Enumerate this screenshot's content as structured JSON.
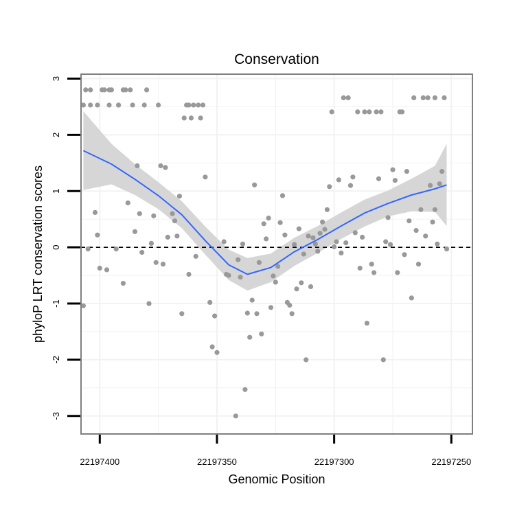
{
  "chart_data": {
    "type": "scatter",
    "title": "Conservation",
    "xlabel": "Genomic Position",
    "ylabel": "phyloP LRT conservation scores",
    "x_reversed": true,
    "xlim": [
      22197408,
      22197241
    ],
    "ylim": [
      -3.32,
      3.08
    ],
    "x_ticks": [
      22197400,
      22197350,
      22197300,
      22197250
    ],
    "x_tick_labels": [
      "22197400",
      "22197350",
      "22197300",
      "22197250"
    ],
    "y_ticks": [
      -3,
      -2,
      -1,
      0,
      1,
      2,
      3
    ],
    "y_tick_labels": [
      "-3",
      "-2",
      "-1",
      "0",
      "1",
      "2",
      "3"
    ],
    "reference_line": {
      "y": 0,
      "style": "dashed"
    },
    "grid": true,
    "colors": {
      "points": "#999999",
      "smooth": "#3366ff",
      "ribbon": "#d6d6d6",
      "panel_border": "#7f7f7f",
      "grid": "#f2f2f2"
    },
    "points": [
      [
        22197407,
        -1.04
      ],
      [
        22197407,
        2.53
      ],
      [
        22197406,
        2.8
      ],
      [
        22197405,
        -0.03
      ],
      [
        22197404,
        2.53
      ],
      [
        22197404,
        2.8
      ],
      [
        22197402,
        0.62
      ],
      [
        22197401,
        0.22
      ],
      [
        22197401,
        2.53
      ],
      [
        22197400,
        -0.37
      ],
      [
        22197399,
        2.8
      ],
      [
        22197398,
        2.8
      ],
      [
        22197397,
        -0.4
      ],
      [
        22197396,
        2.53
      ],
      [
        22197396,
        2.8
      ],
      [
        22197395,
        2.8
      ],
      [
        22197393,
        -0.03
      ],
      [
        22197392,
        2.53
      ],
      [
        22197392,
        2.53
      ],
      [
        22197390,
        -0.64
      ],
      [
        22197390,
        2.8
      ],
      [
        22197389,
        2.8
      ],
      [
        22197388,
        0.79
      ],
      [
        22197387,
        2.8
      ],
      [
        22197386,
        2.53
      ],
      [
        22197385,
        0.28
      ],
      [
        22197384,
        1.45
      ],
      [
        22197383,
        0.6
      ],
      [
        22197382,
        -0.09
      ],
      [
        22197381,
        2.53
      ],
      [
        22197380,
        2.8
      ],
      [
        22197379,
        -1.0
      ],
      [
        22197378,
        0.07
      ],
      [
        22197377,
        0.56
      ],
      [
        22197376,
        -0.27
      ],
      [
        22197375,
        2.53
      ],
      [
        22197374,
        1.45
      ],
      [
        22197373,
        -0.3
      ],
      [
        22197372,
        1.42
      ],
      [
        22197371,
        0.18
      ],
      [
        22197369,
        0.6
      ],
      [
        22197368,
        0.47
      ],
      [
        22197367,
        0.2
      ],
      [
        22197366,
        0.91
      ],
      [
        22197365,
        -1.18
      ],
      [
        22197364,
        2.3
      ],
      [
        22197363,
        2.53
      ],
      [
        22197362,
        -0.48
      ],
      [
        22197362,
        2.53
      ],
      [
        22197361,
        2.3
      ],
      [
        22197360,
        2.53
      ],
      [
        22197359,
        -0.16
      ],
      [
        22197358,
        2.53
      ],
      [
        22197357,
        2.3
      ],
      [
        22197356,
        2.53
      ],
      [
        22197355,
        1.25
      ],
      [
        22197353,
        -0.98
      ],
      [
        22197352,
        -1.77
      ],
      [
        22197351,
        -1.22
      ],
      [
        22197350,
        -1.87
      ],
      [
        22197347,
        0.1
      ],
      [
        22197346,
        -0.48
      ],
      [
        22197345,
        -0.5
      ],
      [
        22197342,
        -3.0
      ],
      [
        22197341,
        -0.22
      ],
      [
        22197340,
        -0.53
      ],
      [
        22197339,
        0.06
      ],
      [
        22197338,
        -2.53
      ],
      [
        22197337,
        -1.17
      ],
      [
        22197336,
        -1.6
      ],
      [
        22197335,
        -0.94
      ],
      [
        22197334,
        1.11
      ],
      [
        22197333,
        -1.18
      ],
      [
        22197332,
        -0.27
      ],
      [
        22197331,
        -1.54
      ],
      [
        22197330,
        0.42
      ],
      [
        22197329,
        0.15
      ],
      [
        22197328,
        0.52
      ],
      [
        22197327,
        -1.07
      ],
      [
        22197326,
        -0.51
      ],
      [
        22197325,
        -0.62
      ],
      [
        22197324,
        -0.34
      ],
      [
        22197323,
        0.44
      ],
      [
        22197322,
        0.92
      ],
      [
        22197321,
        0.22
      ],
      [
        22197320,
        -0.98
      ],
      [
        22197319,
        -1.03
      ],
      [
        22197318,
        -1.18
      ],
      [
        22197317,
        0.05
      ],
      [
        22197316,
        -0.74
      ],
      [
        22197315,
        0.33
      ],
      [
        22197314,
        -0.63
      ],
      [
        22197313,
        -0.12
      ],
      [
        22197312,
        -2.0
      ],
      [
        22197311,
        0.2
      ],
      [
        22197310,
        -0.7
      ],
      [
        22197309,
        0.17
      ],
      [
        22197308,
        0.06
      ],
      [
        22197307,
        -0.07
      ],
      [
        22197306,
        0.25
      ],
      [
        22197305,
        0.45
      ],
      [
        22197304,
        0.32
      ],
      [
        22197303,
        0.67
      ],
      [
        22197302,
        1.08
      ],
      [
        22197301,
        2.41
      ],
      [
        22197300,
        0.01
      ],
      [
        22197299,
        0.1
      ],
      [
        22197298,
        1.2
      ],
      [
        22197297,
        -0.1
      ],
      [
        22197296,
        2.66
      ],
      [
        22197295,
        0.08
      ],
      [
        22197294,
        2.66
      ],
      [
        22197293,
        1.1
      ],
      [
        22197292,
        1.25
      ],
      [
        22197291,
        0.26
      ],
      [
        22197290,
        2.41
      ],
      [
        22197289,
        -0.37
      ],
      [
        22197288,
        0.18
      ],
      [
        22197287,
        2.41
      ],
      [
        22197286,
        -1.35
      ],
      [
        22197285,
        2.41
      ],
      [
        22197284,
        -0.3
      ],
      [
        22197283,
        -0.45
      ],
      [
        22197282,
        2.41
      ],
      [
        22197281,
        1.22
      ],
      [
        22197280,
        2.41
      ],
      [
        22197279,
        -2.0
      ],
      [
        22197278,
        0.1
      ],
      [
        22197277,
        0.53
      ],
      [
        22197276,
        0.05
      ],
      [
        22197275,
        1.38
      ],
      [
        22197274,
        1.19
      ],
      [
        22197273,
        -0.45
      ],
      [
        22197272,
        2.41
      ],
      [
        22197271,
        2.41
      ],
      [
        22197270,
        -0.13
      ],
      [
        22197269,
        1.35
      ],
      [
        22197268,
        0.47
      ],
      [
        22197267,
        -0.9
      ],
      [
        22197266,
        2.66
      ],
      [
        22197265,
        0.3
      ],
      [
        22197264,
        -0.3
      ],
      [
        22197263,
        0.67
      ],
      [
        22197262,
        2.66
      ],
      [
        22197261,
        0.2
      ],
      [
        22197260,
        2.66
      ],
      [
        22197259,
        1.1
      ],
      [
        22197258,
        0.45
      ],
      [
        22197257,
        0.67
      ],
      [
        22197257,
        2.66
      ],
      [
        22197256,
        0.06
      ],
      [
        22197255,
        1.13
      ],
      [
        22197254,
        1.35
      ],
      [
        22197253,
        2.66
      ],
      [
        22197252,
        -0.03
      ]
    ],
    "smooth": [
      {
        "x": 22197407,
        "y": 1.72,
        "lo": 1.02,
        "hi": 2.42
      },
      {
        "x": 22197395,
        "y": 1.48,
        "lo": 1.12,
        "hi": 1.84
      },
      {
        "x": 22197385,
        "y": 1.21,
        "lo": 0.93,
        "hi": 1.48
      },
      {
        "x": 22197375,
        "y": 0.92,
        "lo": 0.68,
        "hi": 1.16
      },
      {
        "x": 22197365,
        "y": 0.58,
        "lo": 0.34,
        "hi": 0.82
      },
      {
        "x": 22197355,
        "y": 0.12,
        "lo": -0.13,
        "hi": 0.37
      },
      {
        "x": 22197345,
        "y": -0.31,
        "lo": -0.58,
        "hi": -0.04
      },
      {
        "x": 22197337,
        "y": -0.48,
        "lo": -0.77,
        "hi": -0.19
      },
      {
        "x": 22197327,
        "y": -0.36,
        "lo": -0.62,
        "hi": -0.11
      },
      {
        "x": 22197317,
        "y": -0.08,
        "lo": -0.33,
        "hi": 0.17
      },
      {
        "x": 22197307,
        "y": 0.14,
        "lo": -0.1,
        "hi": 0.38
      },
      {
        "x": 22197297,
        "y": 0.38,
        "lo": 0.15,
        "hi": 0.62
      },
      {
        "x": 22197287,
        "y": 0.61,
        "lo": 0.37,
        "hi": 0.85
      },
      {
        "x": 22197277,
        "y": 0.78,
        "lo": 0.55,
        "hi": 1.01
      },
      {
        "x": 22197267,
        "y": 0.93,
        "lo": 0.64,
        "hi": 1.22
      },
      {
        "x": 22197257,
        "y": 1.04,
        "lo": 0.63,
        "hi": 1.45
      },
      {
        "x": 22197252,
        "y": 1.11,
        "lo": 0.38,
        "hi": 1.84
      }
    ]
  }
}
